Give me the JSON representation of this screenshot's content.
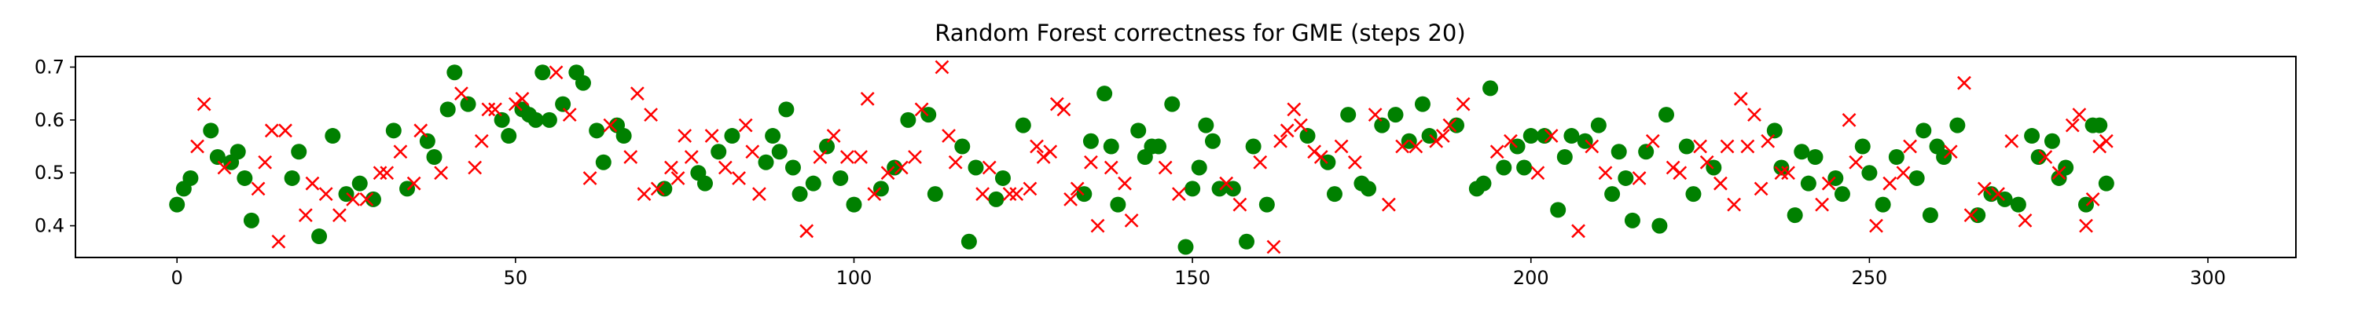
{
  "chart_data": {
    "type": "scatter",
    "title": "Random Forest correctness for GME (steps 20)",
    "xlabel": "",
    "ylabel": "",
    "xlim": [
      -15,
      313
    ],
    "ylim": [
      0.34,
      0.72
    ],
    "xticks": [
      0,
      50,
      100,
      150,
      200,
      250,
      300
    ],
    "yticks": [
      0.4,
      0.5,
      0.6,
      0.7
    ],
    "grid": false,
    "legend": "none",
    "series": [
      {
        "marker": "circle",
        "color": "#008000",
        "points": [
          [
            0,
            0.44
          ],
          [
            1,
            0.47
          ],
          [
            2,
            0.49
          ],
          [
            5,
            0.58
          ],
          [
            6,
            0.53
          ],
          [
            8,
            0.52
          ],
          [
            9,
            0.54
          ],
          [
            10,
            0.49
          ],
          [
            11,
            0.41
          ],
          [
            17,
            0.49
          ],
          [
            18,
            0.54
          ],
          [
            21,
            0.38
          ],
          [
            23,
            0.57
          ],
          [
            25,
            0.46
          ],
          [
            27,
            0.48
          ],
          [
            29,
            0.45
          ],
          [
            32,
            0.58
          ],
          [
            34,
            0.47
          ],
          [
            37,
            0.56
          ],
          [
            38,
            0.53
          ],
          [
            40,
            0.62
          ],
          [
            41,
            0.69
          ],
          [
            43,
            0.63
          ],
          [
            48,
            0.6
          ],
          [
            49,
            0.57
          ],
          [
            51,
            0.62
          ],
          [
            52,
            0.61
          ],
          [
            53,
            0.6
          ],
          [
            54,
            0.69
          ],
          [
            55,
            0.6
          ],
          [
            57,
            0.63
          ],
          [
            59,
            0.69
          ],
          [
            60,
            0.67
          ],
          [
            62,
            0.58
          ],
          [
            63,
            0.52
          ],
          [
            65,
            0.59
          ],
          [
            66,
            0.57
          ],
          [
            72,
            0.47
          ],
          [
            77,
            0.5
          ],
          [
            78,
            0.48
          ],
          [
            80,
            0.54
          ],
          [
            82,
            0.57
          ],
          [
            87,
            0.52
          ],
          [
            88,
            0.57
          ],
          [
            89,
            0.54
          ],
          [
            90,
            0.62
          ],
          [
            91,
            0.51
          ],
          [
            92,
            0.46
          ],
          [
            94,
            0.48
          ],
          [
            96,
            0.55
          ],
          [
            98,
            0.49
          ],
          [
            100,
            0.44
          ],
          [
            104,
            0.47
          ],
          [
            106,
            0.51
          ],
          [
            108,
            0.6
          ],
          [
            111,
            0.61
          ],
          [
            112,
            0.46
          ],
          [
            116,
            0.55
          ],
          [
            117,
            0.37
          ],
          [
            118,
            0.51
          ],
          [
            121,
            0.45
          ],
          [
            122,
            0.49
          ],
          [
            125,
            0.59
          ],
          [
            134,
            0.46
          ],
          [
            135,
            0.56
          ],
          [
            137,
            0.65
          ],
          [
            138,
            0.55
          ],
          [
            139,
            0.44
          ],
          [
            142,
            0.58
          ],
          [
            143,
            0.53
          ],
          [
            144,
            0.55
          ],
          [
            145,
            0.55
          ],
          [
            147,
            0.63
          ],
          [
            149,
            0.36
          ],
          [
            150,
            0.47
          ],
          [
            151,
            0.51
          ],
          [
            152,
            0.59
          ],
          [
            153,
            0.56
          ],
          [
            154,
            0.47
          ],
          [
            156,
            0.47
          ],
          [
            158,
            0.37
          ],
          [
            159,
            0.55
          ],
          [
            161,
            0.44
          ],
          [
            167,
            0.57
          ],
          [
            170,
            0.52
          ],
          [
            171,
            0.46
          ],
          [
            173,
            0.61
          ],
          [
            175,
            0.48
          ],
          [
            176,
            0.47
          ],
          [
            178,
            0.59
          ],
          [
            180,
            0.61
          ],
          [
            182,
            0.56
          ],
          [
            184,
            0.63
          ],
          [
            185,
            0.57
          ],
          [
            189,
            0.59
          ],
          [
            192,
            0.47
          ],
          [
            193,
            0.48
          ],
          [
            194,
            0.66
          ],
          [
            196,
            0.51
          ],
          [
            198,
            0.55
          ],
          [
            199,
            0.51
          ],
          [
            200,
            0.57
          ],
          [
            202,
            0.57
          ],
          [
            204,
            0.43
          ],
          [
            205,
            0.53
          ],
          [
            206,
            0.57
          ],
          [
            208,
            0.56
          ],
          [
            210,
            0.59
          ],
          [
            212,
            0.46
          ],
          [
            213,
            0.54
          ],
          [
            214,
            0.49
          ],
          [
            215,
            0.41
          ],
          [
            217,
            0.54
          ],
          [
            219,
            0.4
          ],
          [
            220,
            0.61
          ],
          [
            223,
            0.55
          ],
          [
            224,
            0.46
          ],
          [
            227,
            0.51
          ],
          [
            236,
            0.58
          ],
          [
            237,
            0.51
          ],
          [
            239,
            0.42
          ],
          [
            240,
            0.54
          ],
          [
            241,
            0.48
          ],
          [
            242,
            0.53
          ],
          [
            245,
            0.49
          ],
          [
            246,
            0.46
          ],
          [
            249,
            0.55
          ],
          [
            250,
            0.5
          ],
          [
            252,
            0.44
          ],
          [
            254,
            0.53
          ],
          [
            257,
            0.49
          ],
          [
            258,
            0.58
          ],
          [
            259,
            0.42
          ],
          [
            260,
            0.55
          ],
          [
            261,
            0.53
          ],
          [
            263,
            0.59
          ],
          [
            266,
            0.42
          ],
          [
            268,
            0.46
          ],
          [
            270,
            0.45
          ],
          [
            272,
            0.44
          ],
          [
            274,
            0.57
          ],
          [
            275,
            0.53
          ],
          [
            277,
            0.56
          ],
          [
            278,
            0.49
          ],
          [
            279,
            0.51
          ],
          [
            282,
            0.44
          ],
          [
            283,
            0.59
          ],
          [
            284,
            0.59
          ],
          [
            285,
            0.48
          ]
        ]
      },
      {
        "marker": "x",
        "color": "#ff0000",
        "points": [
          [
            3,
            0.55
          ],
          [
            4,
            0.63
          ],
          [
            7,
            0.51
          ],
          [
            12,
            0.47
          ],
          [
            13,
            0.52
          ],
          [
            14,
            0.58
          ],
          [
            15,
            0.37
          ],
          [
            16,
            0.58
          ],
          [
            19,
            0.42
          ],
          [
            20,
            0.48
          ],
          [
            22,
            0.46
          ],
          [
            24,
            0.42
          ],
          [
            26,
            0.45
          ],
          [
            28,
            0.45
          ],
          [
            30,
            0.5
          ],
          [
            31,
            0.5
          ],
          [
            33,
            0.54
          ],
          [
            35,
            0.48
          ],
          [
            36,
            0.58
          ],
          [
            39,
            0.5
          ],
          [
            42,
            0.65
          ],
          [
            44,
            0.51
          ],
          [
            45,
            0.56
          ],
          [
            46,
            0.62
          ],
          [
            47,
            0.62
          ],
          [
            50,
            0.63
          ],
          [
            51,
            0.64
          ],
          [
            56,
            0.69
          ],
          [
            58,
            0.61
          ],
          [
            61,
            0.49
          ],
          [
            64,
            0.59
          ],
          [
            67,
            0.53
          ],
          [
            68,
            0.65
          ],
          [
            69,
            0.46
          ],
          [
            70,
            0.61
          ],
          [
            71,
            0.47
          ],
          [
            73,
            0.51
          ],
          [
            74,
            0.49
          ],
          [
            75,
            0.57
          ],
          [
            76,
            0.53
          ],
          [
            79,
            0.57
          ],
          [
            81,
            0.51
          ],
          [
            83,
            0.49
          ],
          [
            84,
            0.59
          ],
          [
            85,
            0.54
          ],
          [
            86,
            0.46
          ],
          [
            93,
            0.39
          ],
          [
            95,
            0.53
          ],
          [
            97,
            0.57
          ],
          [
            99,
            0.53
          ],
          [
            101,
            0.53
          ],
          [
            102,
            0.64
          ],
          [
            103,
            0.46
          ],
          [
            105,
            0.5
          ],
          [
            107,
            0.51
          ],
          [
            109,
            0.53
          ],
          [
            110,
            0.62
          ],
          [
            113,
            0.7
          ],
          [
            114,
            0.57
          ],
          [
            115,
            0.52
          ],
          [
            119,
            0.46
          ],
          [
            120,
            0.51
          ],
          [
            123,
            0.46
          ],
          [
            124,
            0.46
          ],
          [
            126,
            0.47
          ],
          [
            127,
            0.55
          ],
          [
            128,
            0.53
          ],
          [
            129,
            0.54
          ],
          [
            130,
            0.63
          ],
          [
            131,
            0.62
          ],
          [
            132,
            0.45
          ],
          [
            133,
            0.47
          ],
          [
            135,
            0.52
          ],
          [
            136,
            0.4
          ],
          [
            138,
            0.51
          ],
          [
            140,
            0.48
          ],
          [
            141,
            0.41
          ],
          [
            146,
            0.51
          ],
          [
            148,
            0.46
          ],
          [
            155,
            0.48
          ],
          [
            157,
            0.44
          ],
          [
            160,
            0.52
          ],
          [
            162,
            0.36
          ],
          [
            163,
            0.56
          ],
          [
            164,
            0.58
          ],
          [
            165,
            0.62
          ],
          [
            166,
            0.59
          ],
          [
            168,
            0.54
          ],
          [
            169,
            0.53
          ],
          [
            172,
            0.55
          ],
          [
            174,
            0.52
          ],
          [
            177,
            0.61
          ],
          [
            179,
            0.44
          ],
          [
            181,
            0.55
          ],
          [
            183,
            0.55
          ],
          [
            186,
            0.56
          ],
          [
            187,
            0.57
          ],
          [
            188,
            0.59
          ],
          [
            190,
            0.63
          ],
          [
            195,
            0.54
          ],
          [
            197,
            0.56
          ],
          [
            201,
            0.5
          ],
          [
            203,
            0.57
          ],
          [
            207,
            0.39
          ],
          [
            209,
            0.55
          ],
          [
            211,
            0.5
          ],
          [
            216,
            0.49
          ],
          [
            218,
            0.56
          ],
          [
            221,
            0.51
          ],
          [
            222,
            0.5
          ],
          [
            225,
            0.55
          ],
          [
            226,
            0.52
          ],
          [
            228,
            0.48
          ],
          [
            229,
            0.55
          ],
          [
            230,
            0.44
          ],
          [
            231,
            0.64
          ],
          [
            232,
            0.55
          ],
          [
            233,
            0.61
          ],
          [
            234,
            0.47
          ],
          [
            235,
            0.56
          ],
          [
            237,
            0.5
          ],
          [
            238,
            0.5
          ],
          [
            243,
            0.44
          ],
          [
            244,
            0.48
          ],
          [
            247,
            0.6
          ],
          [
            248,
            0.52
          ],
          [
            251,
            0.4
          ],
          [
            253,
            0.48
          ],
          [
            255,
            0.5
          ],
          [
            256,
            0.55
          ],
          [
            262,
            0.54
          ],
          [
            264,
            0.67
          ],
          [
            265,
            0.42
          ],
          [
            267,
            0.47
          ],
          [
            269,
            0.46
          ],
          [
            271,
            0.56
          ],
          [
            273,
            0.41
          ],
          [
            276,
            0.53
          ],
          [
            278,
            0.5
          ],
          [
            280,
            0.59
          ],
          [
            281,
            0.61
          ],
          [
            282,
            0.4
          ],
          [
            283,
            0.45
          ],
          [
            284,
            0.55
          ],
          [
            285,
            0.56
          ]
        ]
      }
    ]
  }
}
